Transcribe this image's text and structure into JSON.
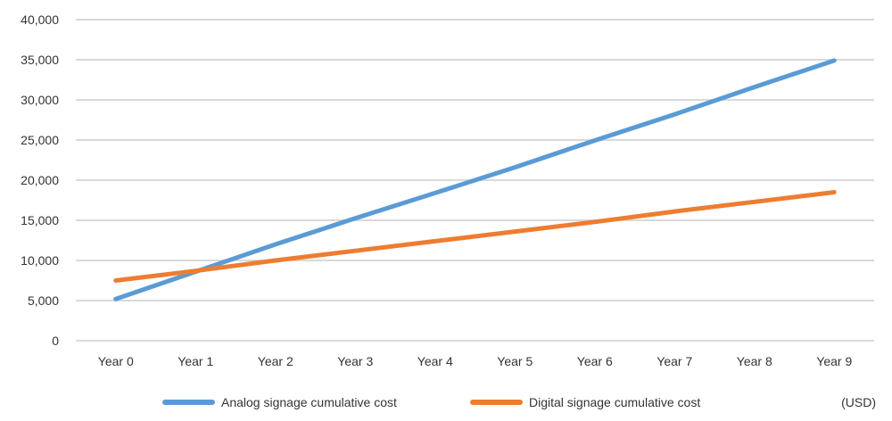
{
  "chart_data": {
    "type": "line",
    "categories": [
      "Year 0",
      "Year 1",
      "Year 2",
      "Year 3",
      "Year 4",
      "Year 5",
      "Year 6",
      "Year 7",
      "Year 8",
      "Year 9"
    ],
    "series": [
      {
        "name": "Analog signage cumulative cost",
        "color": "#5b9bd5",
        "values": [
          5200,
          8600,
          12000,
          15250,
          18400,
          21600,
          24950,
          28200,
          31600,
          34900
        ]
      },
      {
        "name": "Digital signage cumulative cost",
        "color": "#ed7d31",
        "values": [
          7500,
          8700,
          10000,
          11200,
          12400,
          13600,
          14800,
          16100,
          17300,
          18500
        ]
      }
    ],
    "yticks": [
      "0",
      "5,000",
      "10,000",
      "15,000",
      "20,000",
      "25,000",
      "30,000",
      "35,000",
      "40,000"
    ],
    "ylim": [
      0,
      40000
    ],
    "grid": true,
    "legend_position": "bottom",
    "unit": "(USD)",
    "gridline_color": "#d9d9d9"
  }
}
